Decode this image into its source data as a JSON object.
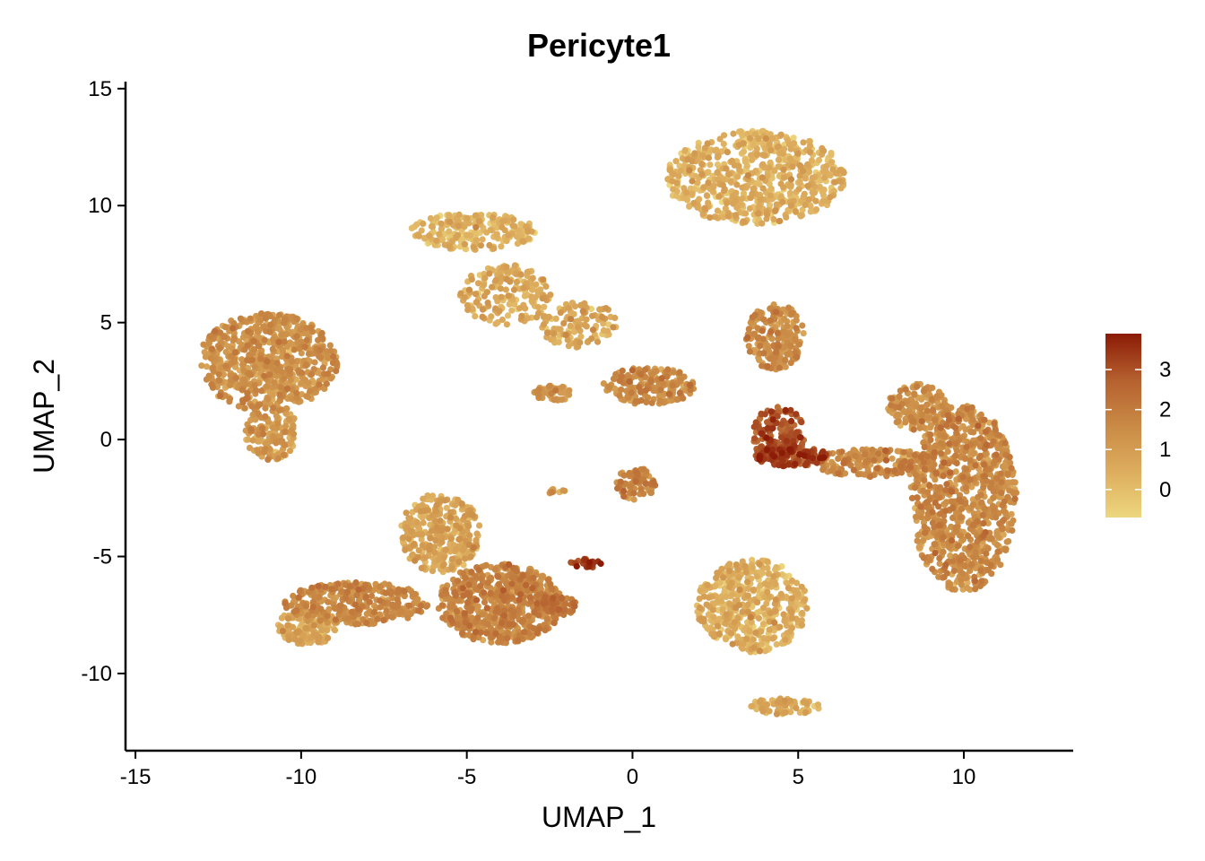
{
  "chart_data": {
    "type": "scatter",
    "title": "Pericyte1",
    "xlabel": "UMAP_1",
    "ylabel": "UMAP_2",
    "xlim": [
      -15.3,
      13.3
    ],
    "ylim": [
      -13.3,
      15.3
    ],
    "x_ticks": [
      -15,
      -10,
      -5,
      0,
      5,
      10
    ],
    "y_ticks": [
      15,
      10,
      5,
      0,
      -5,
      -10
    ],
    "x_tick_labels": [
      "-15",
      "-10",
      "-5",
      "0",
      "5",
      "10"
    ],
    "y_tick_labels": [
      "15",
      "10",
      "5",
      "0",
      "-5",
      "-10"
    ],
    "grid": false,
    "legend": {
      "position": "right",
      "type": "continuous-colorbar",
      "ticks": [
        0,
        1,
        2,
        3
      ],
      "tick_labels": [
        "0",
        "1",
        "2",
        "3"
      ],
      "range": [
        -0.7,
        3.9
      ]
    },
    "color_scale": [
      "#EDD77E",
      "#DDAD5E",
      "#C98A45",
      "#B5602F",
      "#8B1A06"
    ],
    "clusters": [
      {
        "cx": -11.0,
        "cy": 3.3,
        "rx": 2.1,
        "ry": 2.1,
        "count": 700,
        "mean_expression": 1.2
      },
      {
        "cx": -10.9,
        "cy": 0.3,
        "rx": 0.8,
        "ry": 1.2,
        "count": 140,
        "mean_expression": 0.9
      },
      {
        "cx": -4.8,
        "cy": 8.9,
        "rx": 1.9,
        "ry": 0.8,
        "count": 220,
        "mean_expression": 0.2
      },
      {
        "cx": -3.8,
        "cy": 6.2,
        "rx": 1.4,
        "ry": 1.3,
        "count": 180,
        "mean_expression": 0.5
      },
      {
        "cx": -1.6,
        "cy": 4.9,
        "rx": 1.2,
        "ry": 1.0,
        "count": 110,
        "mean_expression": 0.6
      },
      {
        "cx": 0.5,
        "cy": 2.3,
        "rx": 1.4,
        "ry": 0.8,
        "count": 200,
        "mean_expression": 1.4
      },
      {
        "cx": -2.4,
        "cy": 2.0,
        "rx": 0.6,
        "ry": 0.35,
        "count": 50,
        "mean_expression": 1.0
      },
      {
        "cx": 0.1,
        "cy": -1.9,
        "rx": 0.6,
        "ry": 0.7,
        "count": 80,
        "mean_expression": 1.6
      },
      {
        "cx": 3.7,
        "cy": 11.2,
        "rx": 2.7,
        "ry": 2.0,
        "count": 650,
        "mean_expression": 0.3
      },
      {
        "cx": 4.3,
        "cy": 4.4,
        "rx": 0.9,
        "ry": 1.4,
        "count": 200,
        "mean_expression": 1.3
      },
      {
        "cx": 4.4,
        "cy": 0.2,
        "rx": 0.8,
        "ry": 1.2,
        "count": 170,
        "mean_expression": 2.8
      },
      {
        "cx": 4.8,
        "cy": -0.7,
        "rx": 1.1,
        "ry": 0.45,
        "count": 140,
        "mean_expression": 3.1
      },
      {
        "cx": 7.4,
        "cy": -1.0,
        "rx": 2.0,
        "ry": 0.6,
        "count": 200,
        "mean_expression": 1.4
      },
      {
        "cx": 10.0,
        "cy": -2.5,
        "rx": 1.6,
        "ry": 4.0,
        "count": 900,
        "mean_expression": 1.4
      },
      {
        "cx": 8.6,
        "cy": 1.4,
        "rx": 0.9,
        "ry": 1.0,
        "count": 160,
        "mean_expression": 1.2
      },
      {
        "cx": 3.6,
        "cy": -7.1,
        "rx": 1.7,
        "ry": 2.0,
        "count": 500,
        "mean_expression": 0.3
      },
      {
        "cx": 4.6,
        "cy": -11.4,
        "rx": 1.1,
        "ry": 0.35,
        "count": 70,
        "mean_expression": 0.4
      },
      {
        "cx": -4.0,
        "cy": -7.0,
        "rx": 1.9,
        "ry": 1.7,
        "count": 650,
        "mean_expression": 1.6
      },
      {
        "cx": -5.8,
        "cy": -4.0,
        "rx": 1.2,
        "ry": 1.7,
        "count": 320,
        "mean_expression": 0.6
      },
      {
        "cx": -8.3,
        "cy": -7.0,
        "rx": 2.2,
        "ry": 0.9,
        "count": 350,
        "mean_expression": 1.4
      },
      {
        "cx": -9.8,
        "cy": -8.0,
        "rx": 0.9,
        "ry": 0.8,
        "count": 150,
        "mean_expression": 0.5
      },
      {
        "cx": -1.4,
        "cy": -5.3,
        "rx": 0.5,
        "ry": 0.2,
        "count": 25,
        "mean_expression": 3.3
      },
      {
        "cx": -2.2,
        "cy": -7.1,
        "rx": 0.6,
        "ry": 0.4,
        "count": 40,
        "mean_expression": 2.0
      },
      {
        "cx": -2.3,
        "cy": -2.2,
        "rx": 0.25,
        "ry": 0.15,
        "count": 10,
        "mean_expression": 1.0
      }
    ]
  }
}
